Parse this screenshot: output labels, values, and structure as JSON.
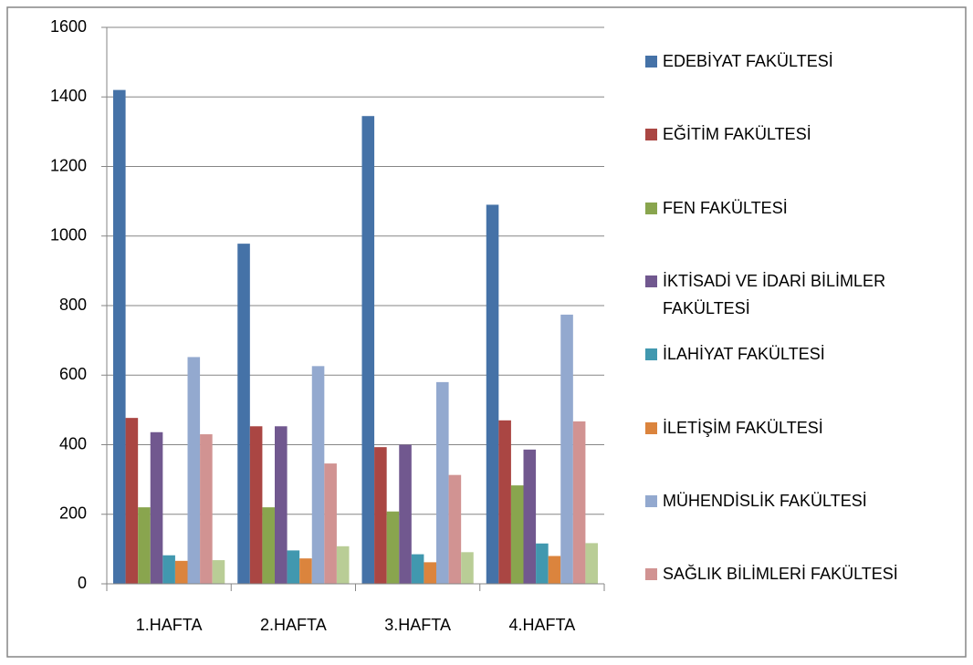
{
  "chart_data": {
    "type": "bar",
    "categories": [
      "1.HAFTA",
      "2.HAFTA",
      "3.HAFTA",
      "4.HAFTA"
    ],
    "series": [
      {
        "name": "EDEBİYAT FAKÜLTESİ",
        "color": "#4572a7",
        "values": [
          1420,
          978,
          1345,
          1090
        ]
      },
      {
        "name": "EĞİTİM FAKÜLTESİ",
        "color": "#aa4643",
        "values": [
          477,
          453,
          393,
          470
        ]
      },
      {
        "name": "FEN FAKÜLTESİ",
        "color": "#89a54e",
        "values": [
          220,
          220,
          208,
          283
        ]
      },
      {
        "name": "İKTİSADİ VE İDARİ BİLİMLER FAKÜLTESİ",
        "color": "#71588f",
        "values": [
          436,
          453,
          400,
          386
        ]
      },
      {
        "name": "İLAHİYAT FAKÜLTESİ",
        "color": "#4198af",
        "values": [
          82,
          96,
          85,
          116
        ]
      },
      {
        "name": "İLETİŞİM FAKÜLTESİ",
        "color": "#db843d",
        "values": [
          66,
          73,
          62,
          80
        ]
      },
      {
        "name": "MÜHENDİSLİK FAKÜLTESİ",
        "color": "#93a9cf",
        "values": [
          652,
          626,
          580,
          774
        ]
      },
      {
        "name": "SAĞLIK BİLİMLERİ FAKÜLTESİ",
        "color": "#d19392",
        "values": [
          430,
          346,
          313,
          467
        ]
      },
      {
        "color": "#b9cd96",
        "values": [
          68,
          108,
          91,
          117
        ]
      }
    ],
    "ylim": [
      0,
      1600
    ],
    "yticks": [
      0,
      200,
      400,
      600,
      800,
      1000,
      1200,
      1400,
      1600
    ],
    "grid": true
  }
}
